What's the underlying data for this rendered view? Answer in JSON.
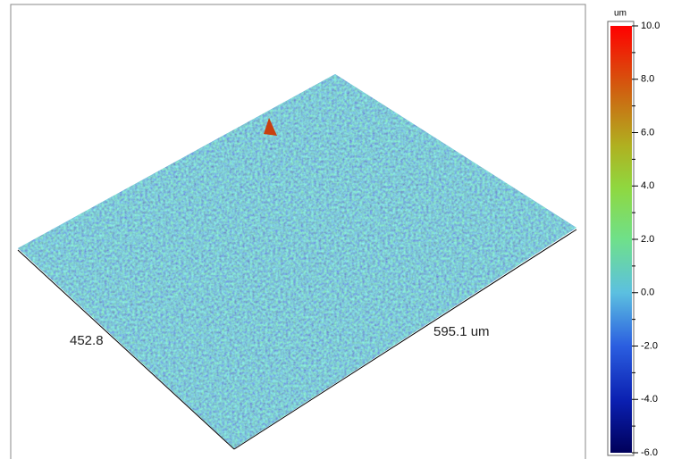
{
  "chart_data": {
    "type": "surface",
    "x_label": "595.1 um",
    "y_label": "452.8",
    "colorbar": {
      "unit": "um",
      "clim": [
        -6,
        10
      ],
      "ticks": [
        {
          "value": -6,
          "label": "-6.0"
        },
        {
          "value": -4,
          "label": "-4.0"
        },
        {
          "value": -2,
          "label": "-2.0"
        },
        {
          "value": 0,
          "label": "0.0"
        },
        {
          "value": 2,
          "label": "2.0"
        },
        {
          "value": 4,
          "label": "4.0"
        },
        {
          "value": 6,
          "label": "6.0"
        },
        {
          "value": 8,
          "label": "8.0"
        },
        {
          "value": 10,
          "label": "10.0"
        }
      ],
      "minor_ticks": [
        -5,
        -3,
        -1,
        1,
        3,
        5,
        7,
        9
      ]
    }
  }
}
